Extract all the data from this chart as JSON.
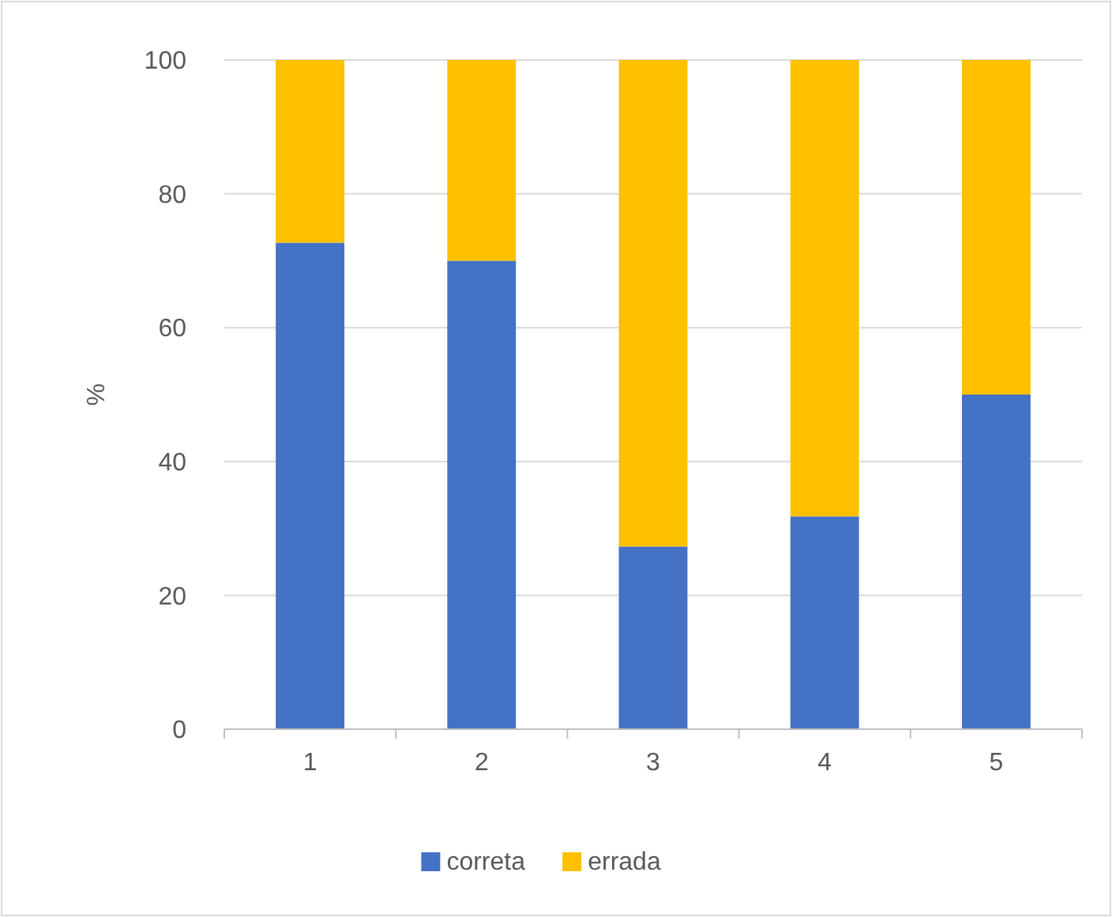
{
  "chart_data": {
    "type": "bar",
    "stacked": true,
    "ylabel": "%",
    "categories": [
      "1",
      "2",
      "3",
      "4",
      "5"
    ],
    "series": [
      {
        "name": "correta",
        "color": "#4472c4",
        "values": [
          72.7,
          70,
          27.3,
          31.8,
          50
        ]
      },
      {
        "name": "errada",
        "color": "#ffc000",
        "values": [
          27.3,
          30,
          72.7,
          68.2,
          50
        ]
      }
    ],
    "ylim": [
      0,
      100
    ],
    "yticks": [
      0,
      20,
      40,
      60,
      80,
      100
    ],
    "grid": "y",
    "legend": "bottom"
  }
}
